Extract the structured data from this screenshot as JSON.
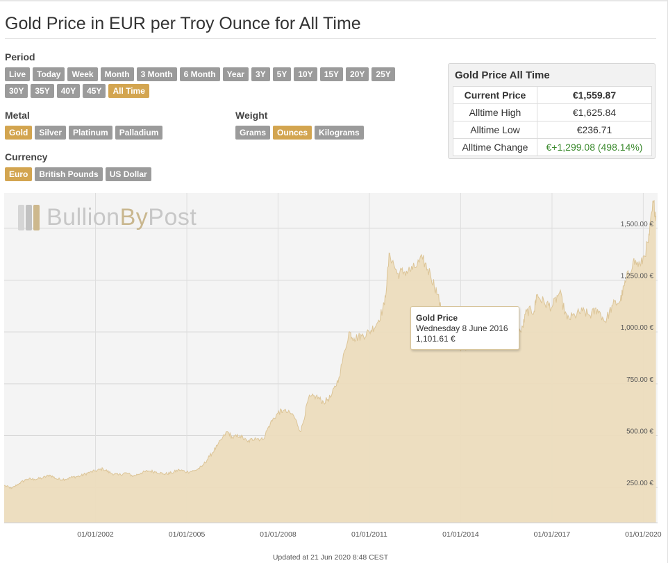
{
  "page": {
    "title": "Gold Price in EUR per Troy Ounce for All Time",
    "updated": "Updated at 21 Jun 2020 8:48 CEST"
  },
  "filters": {
    "period": {
      "label": "Period",
      "options": [
        "Live",
        "Today",
        "Week",
        "Month",
        "3 Month",
        "6 Month",
        "Year",
        "3Y",
        "5Y",
        "10Y",
        "15Y",
        "20Y",
        "25Y",
        "30Y",
        "35Y",
        "40Y",
        "45Y",
        "All Time"
      ],
      "selected": "All Time"
    },
    "metal": {
      "label": "Metal",
      "options": [
        "Gold",
        "Silver",
        "Platinum",
        "Palladium"
      ],
      "selected": "Gold"
    },
    "weight": {
      "label": "Weight",
      "options": [
        "Grams",
        "Ounces",
        "Kilograms"
      ],
      "selected": "Ounces"
    },
    "currency": {
      "label": "Currency",
      "options": [
        "Euro",
        "British Pounds",
        "US Dollar"
      ],
      "selected": "Euro"
    }
  },
  "stats": {
    "title": "Gold Price All Time",
    "rows": [
      {
        "label": "Current Price",
        "value": "€1,559.87"
      },
      {
        "label": "Alltime High",
        "value": "€1,625.84"
      },
      {
        "label": "Alltime Low",
        "value": "€236.71"
      },
      {
        "label": "Alltime Change",
        "value": "€+1,299.08 (498.14%)"
      }
    ]
  },
  "watermark": {
    "brand": "Bullion",
    "by": "By",
    "post": "Post"
  },
  "tooltip": {
    "title": "Gold Price",
    "date": "Wednesday 8 June 2016",
    "value": "1,101.61 €",
    "x": "2016-06-08",
    "y": 1101.61
  },
  "colors": {
    "accent": "#d3a550",
    "button": "#9b9b9b",
    "area_fill": "#ecdcbd",
    "area_line": "#dcc598",
    "positive": "#3b8a2e"
  },
  "chart_data": {
    "type": "area",
    "series": [
      {
        "name": "Gold Price",
        "x": [
          "1999-01",
          "1999-04",
          "1999-07",
          "1999-10",
          "2000-01",
          "2000-04",
          "2000-07",
          "2000-10",
          "2001-01",
          "2001-04",
          "2001-07",
          "2001-10",
          "2002-01",
          "2002-04",
          "2002-07",
          "2002-10",
          "2003-01",
          "2003-04",
          "2003-07",
          "2003-10",
          "2004-01",
          "2004-04",
          "2004-07",
          "2004-10",
          "2005-01",
          "2005-04",
          "2005-07",
          "2005-10",
          "2006-01",
          "2006-05",
          "2006-07",
          "2006-10",
          "2007-01",
          "2007-04",
          "2007-07",
          "2007-10",
          "2008-01",
          "2008-03",
          "2008-07",
          "2008-10",
          "2009-01",
          "2009-04",
          "2009-07",
          "2009-10",
          "2010-01",
          "2010-05",
          "2010-07",
          "2010-10",
          "2011-01",
          "2011-04",
          "2011-07",
          "2011-09",
          "2011-12",
          "2012-03",
          "2012-06",
          "2012-10",
          "2013-01",
          "2013-04",
          "2013-07",
          "2013-10",
          "2014-01",
          "2014-04",
          "2014-07",
          "2014-10",
          "2015-01",
          "2015-04",
          "2015-07",
          "2015-10",
          "2016-01",
          "2016-03",
          "2016-06",
          "2016-07",
          "2016-10",
          "2017-01",
          "2017-04",
          "2017-07",
          "2017-10",
          "2018-01",
          "2018-04",
          "2018-07",
          "2018-10",
          "2019-01",
          "2019-04",
          "2019-06",
          "2019-09",
          "2019-12",
          "2020-03",
          "2020-05",
          "2020-06"
        ],
        "values": [
          260,
          245,
          270,
          290,
          290,
          295,
          310,
          290,
          290,
          300,
          305,
          320,
          330,
          340,
          320,
          310,
          320,
          305,
          320,
          330,
          325,
          315,
          320,
          335,
          325,
          330,
          350,
          400,
          450,
          520,
          490,
          500,
          470,
          490,
          480,
          560,
          610,
          620,
          600,
          520,
          680,
          690,
          660,
          690,
          780,
          1000,
          970,
          980,
          1000,
          1040,
          1130,
          1380,
          1280,
          1290,
          1300,
          1350,
          1280,
          1180,
          1000,
          980,
          910,
          940,
          960,
          960,
          1000,
          1100,
          1000,
          1040,
          1000,
          1100,
          1101.61,
          1180,
          1140,
          1120,
          1190,
          1060,
          1080,
          1100,
          1080,
          1110,
          1050,
          1130,
          1150,
          1240,
          1340,
          1320,
          1430,
          1625.84,
          1559.87
        ]
      }
    ],
    "xlim": [
      "1999-01-01",
      "2020-06-21"
    ],
    "ylim": [
      80,
      1670
    ],
    "x_ticks": [
      "01/01/2002",
      "01/01/2005",
      "01/01/2008",
      "01/01/2011",
      "01/01/2014",
      "01/01/2017",
      "01/01/2020"
    ],
    "y_ticks": [
      "250.00 €",
      "500.00 €",
      "750.00 €",
      "1,000.00 €",
      "1,250.00 €",
      "1,500.00 €"
    ],
    "grid": true,
    "legend": "none"
  }
}
